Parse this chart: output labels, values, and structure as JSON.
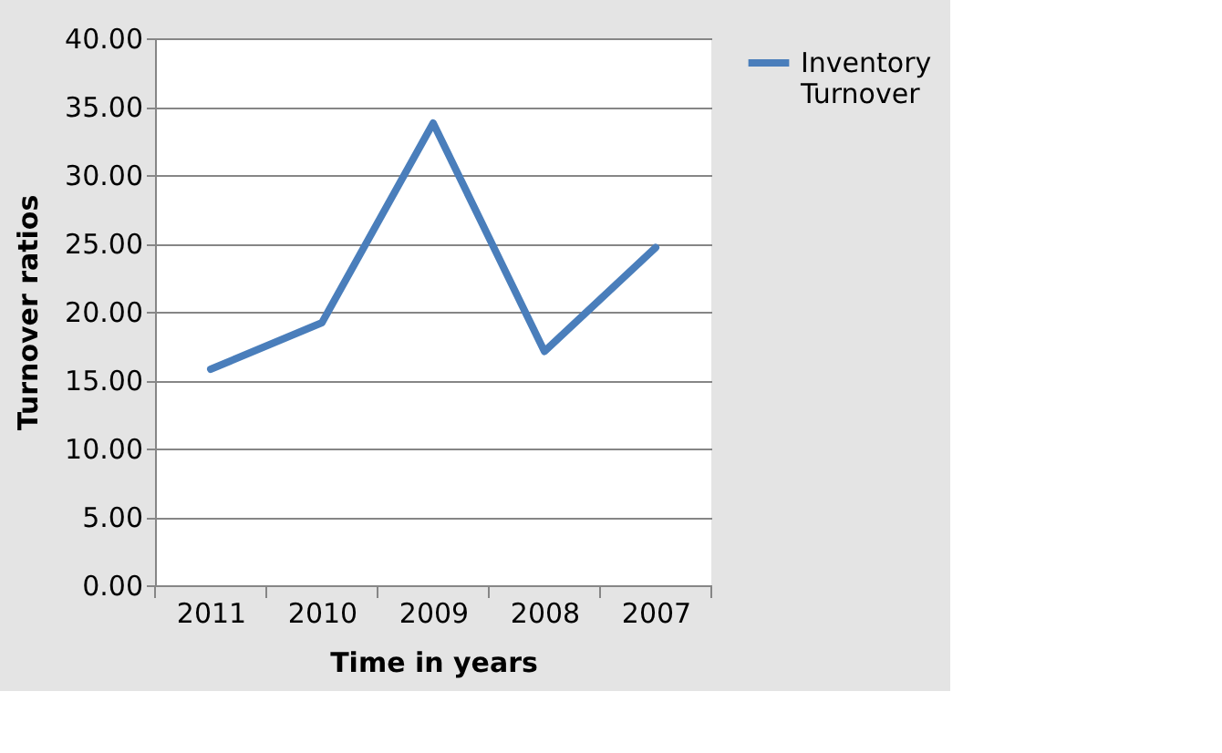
{
  "chart_data": {
    "type": "line",
    "xlabel": "Time in years",
    "ylabel": "Turnover ratios",
    "categories": [
      "2011",
      "2010",
      "2009",
      "2008",
      "2007"
    ],
    "series": [
      {
        "name": "Inventory Turnover",
        "color": "#4a7ebb",
        "values": [
          15.8,
          19.2,
          33.8,
          17.1,
          24.7
        ]
      }
    ],
    "ylim": [
      0,
      40
    ],
    "yticks": [
      {
        "value": 0,
        "label": "0.00"
      },
      {
        "value": 5,
        "label": "5.00"
      },
      {
        "value": 10,
        "label": "10.00"
      },
      {
        "value": 15,
        "label": "15.00"
      },
      {
        "value": 20,
        "label": "20.00"
      },
      {
        "value": 25,
        "label": "25.00"
      },
      {
        "value": 30,
        "label": "30.00"
      },
      {
        "value": 35,
        "label": "35.00"
      },
      {
        "value": 40,
        "label": "40.00"
      }
    ],
    "grid": "y",
    "legend": "right",
    "marker": "none",
    "line_style": "solid"
  }
}
